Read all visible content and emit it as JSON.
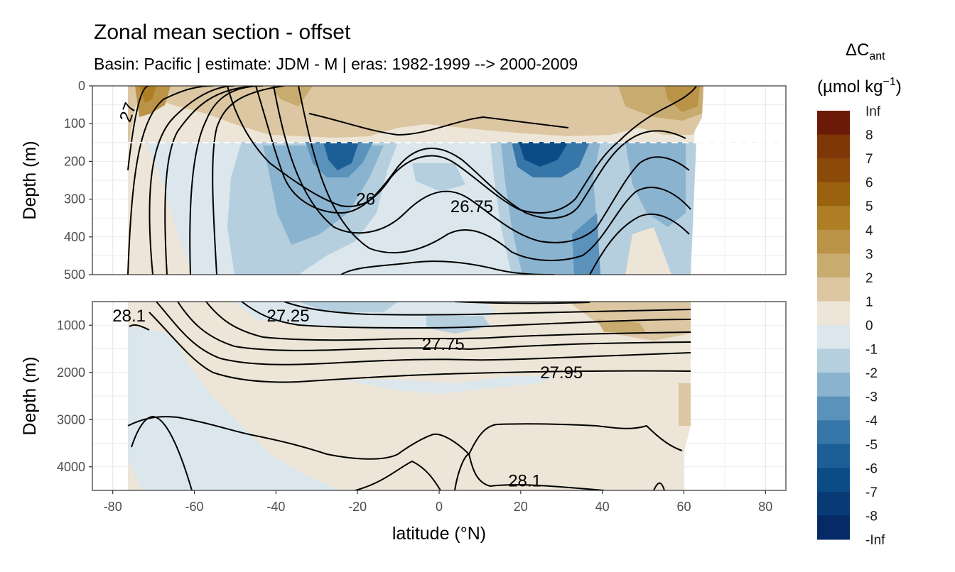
{
  "title": "Zonal mean section - offset",
  "subtitle": "Basin: Pacific | estimate: JDM - M | eras: 1982-1999 --> 2000-2009",
  "legend": {
    "title_main": "ΔC",
    "title_sub": "ant",
    "unit_main": "(µmol kg",
    "unit_sup": "−1",
    "unit_close": ")",
    "levels": [
      "Inf",
      "8",
      "7",
      "6",
      "5",
      "4",
      "3",
      "2",
      "1",
      "0",
      "-1",
      "-2",
      "-3",
      "-4",
      "-5",
      "-6",
      "-7",
      "-8",
      "-Inf"
    ],
    "colors": [
      "#6b1a08",
      "#7f3708",
      "#8c4a0a",
      "#9a620e",
      "#ad7e23",
      "#bb9347",
      "#c8ab6f",
      "#dcc7a2",
      "#ede5d7",
      "#dbe7ec",
      "#b5cfdf",
      "#8ab3cf",
      "#5b92bb",
      "#3676a8",
      "#1b5f96",
      "#0b4c87",
      "#083a76",
      "#062a66",
      "#041a58"
    ]
  },
  "chart_data": [
    {
      "type": "heatmap",
      "panel": "upper",
      "xlabel": "latitude (°N)",
      "ylabel": "Depth (m)",
      "xlim": [
        -85,
        85
      ],
      "ylim": [
        500,
        0
      ],
      "x_ticks": [
        -80,
        -60,
        -40,
        -20,
        0,
        20,
        40,
        60,
        80
      ],
      "y_ticks": [
        0,
        100,
        200,
        300,
        400,
        500
      ],
      "dashed_line_depth": 150,
      "contour_labels": [
        {
          "text": "26",
          "lat": -18,
          "depth": 300
        },
        {
          "text": "26.75",
          "lat": 8,
          "depth": 320
        },
        {
          "text": "27",
          "lat": -75,
          "depth": 60
        }
      ]
    },
    {
      "type": "heatmap",
      "panel": "lower",
      "xlabel": "latitude (°N)",
      "ylabel": "Depth (m)",
      "xlim": [
        -85,
        85
      ],
      "ylim": [
        4500,
        500
      ],
      "x_ticks": [
        -80,
        -60,
        -40,
        -20,
        0,
        20,
        40,
        60,
        80
      ],
      "y_ticks": [
        1000,
        2000,
        3000,
        4000
      ],
      "contour_labels": [
        {
          "text": "28.1",
          "lat": -76,
          "depth": 800
        },
        {
          "text": "27.25",
          "lat": -37,
          "depth": 800
        },
        {
          "text": "27.75",
          "lat": 1,
          "depth": 1400
        },
        {
          "text": "27.95",
          "lat": 30,
          "depth": 2000
        },
        {
          "text": "28.1",
          "lat": 21,
          "depth": 4300
        }
      ]
    }
  ]
}
